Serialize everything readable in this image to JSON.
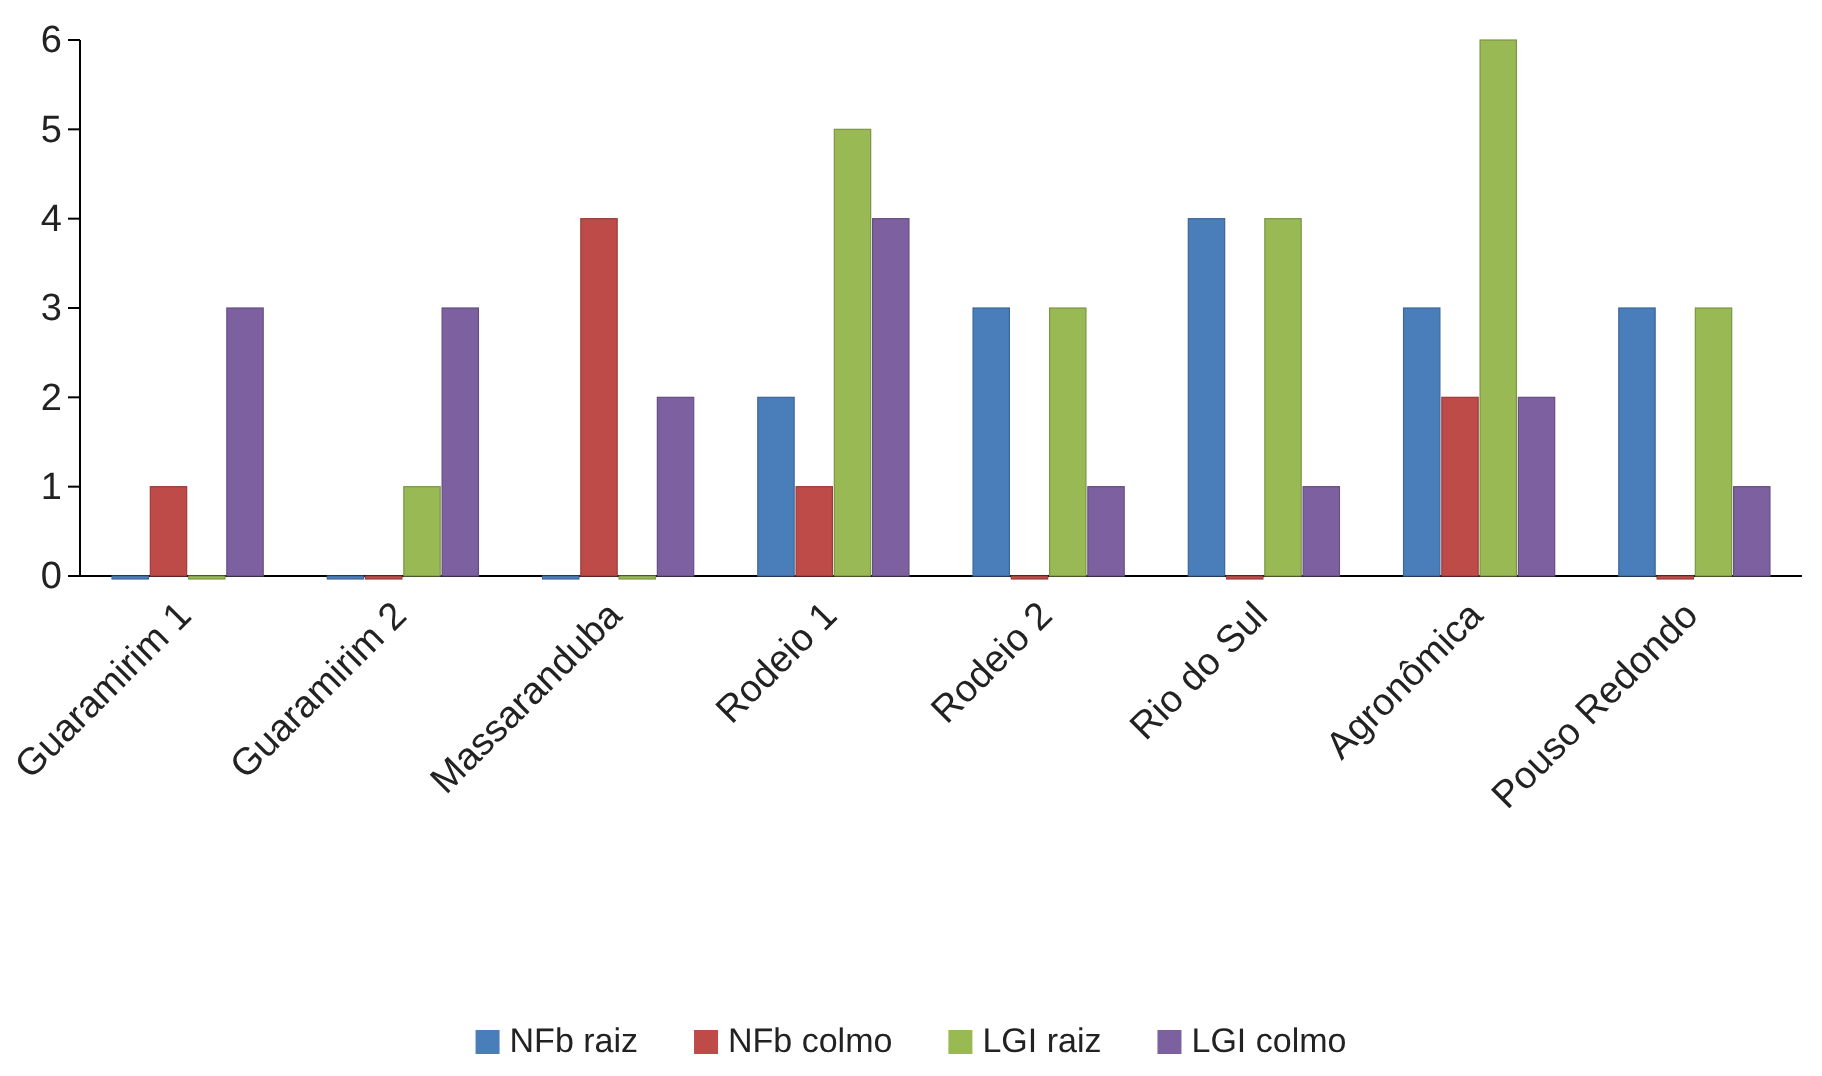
{
  "chart_data": {
    "type": "bar",
    "categories": [
      "Guaramirim 1",
      "Guaramirim 2",
      "Massaranduba",
      "Rodeio 1",
      "Rodeio 2",
      "Rio do Sul",
      "Agronômica",
      "Pouso Redondo"
    ],
    "series": [
      {
        "name": "NFb raiz",
        "color": "#4a7ebb",
        "values": [
          0,
          0,
          0,
          2,
          3,
          4,
          3,
          3
        ]
      },
      {
        "name": "NFb colmo",
        "color": "#be4b48",
        "values": [
          1,
          0,
          4,
          1,
          0,
          0,
          2,
          0
        ]
      },
      {
        "name": "LGI raiz",
        "color": "#98b954",
        "values": [
          0,
          1,
          0,
          5,
          3,
          4,
          6,
          3
        ]
      },
      {
        "name": "LGI colmo",
        "color": "#7d60a0",
        "values": [
          3,
          3,
          2,
          4,
          1,
          1,
          2,
          1
        ]
      }
    ],
    "ylim": [
      0,
      6
    ],
    "yticks": [
      0,
      1,
      2,
      3,
      4,
      5,
      6
    ],
    "grid": false,
    "legend": "bottom"
  }
}
